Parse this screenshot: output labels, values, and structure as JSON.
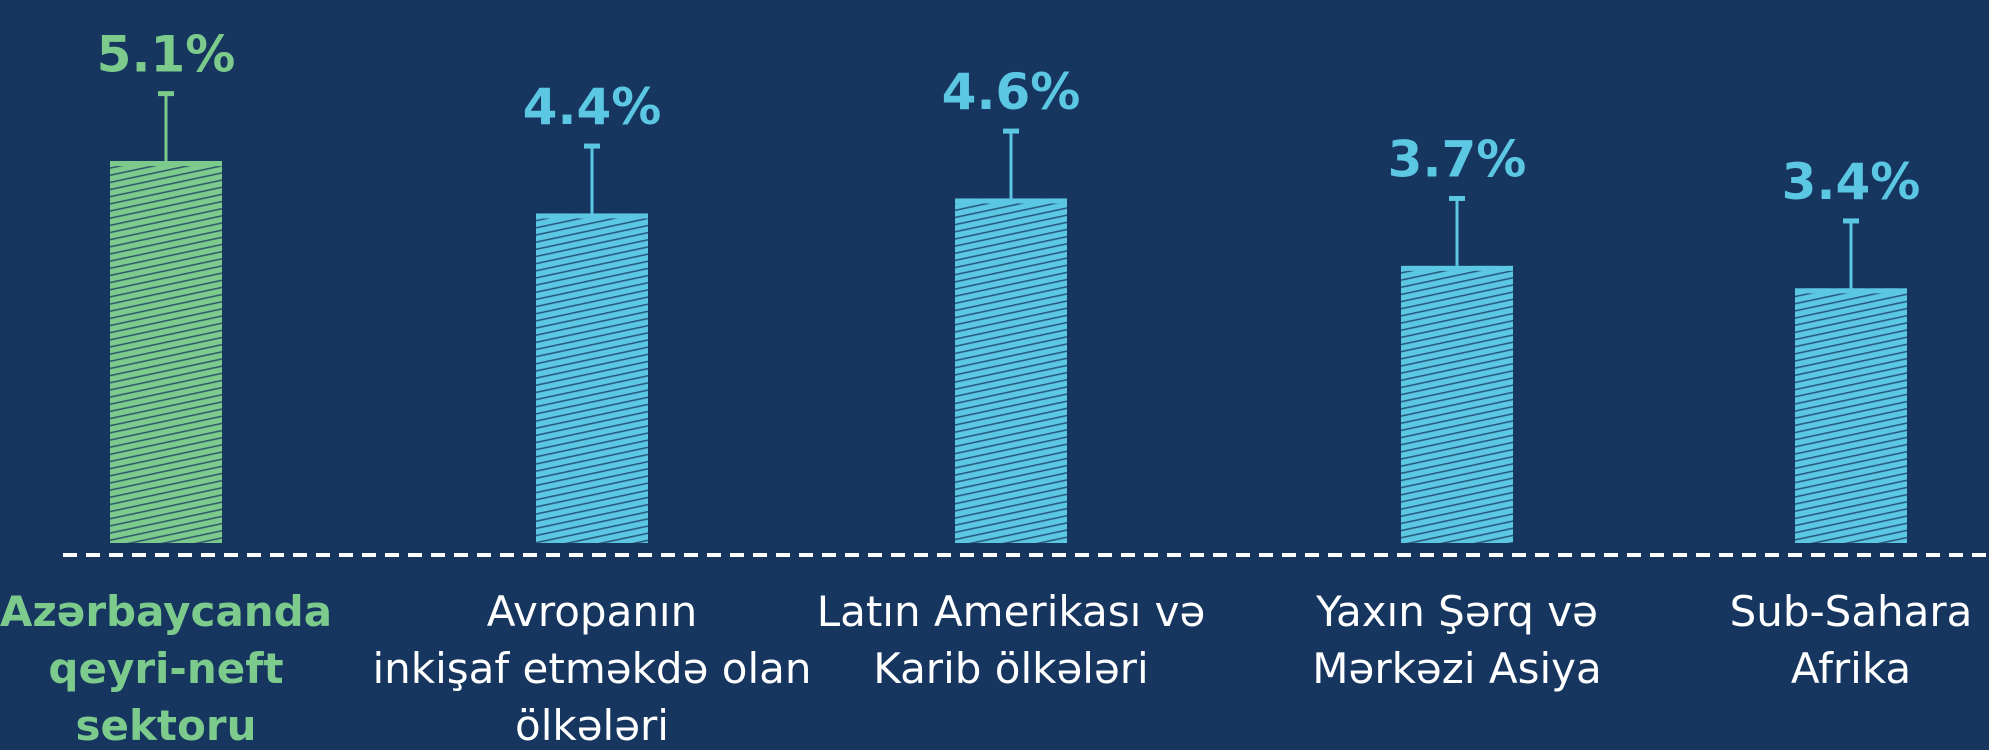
{
  "chart_data": {
    "type": "bar",
    "categories": [
      [
        "Azərbaycanda",
        "qeyri-neft",
        "sektoru"
      ],
      [
        "Avropanın",
        "inkişaf etməkdə olan",
        "ölkələri"
      ],
      [
        "Latın Amerikası və",
        "Karib ölkələri"
      ],
      [
        "Yaxın Şərq və",
        "Mərkəzi Asiya"
      ],
      [
        "Sub-Sahara",
        "Afrika"
      ]
    ],
    "values": [
      5.1,
      4.4,
      4.6,
      3.7,
      3.4
    ],
    "value_labels": [
      "5.1%",
      "4.4%",
      "4.6%",
      "3.7%",
      "3.4%"
    ],
    "errors": [
      0.9,
      0.9,
      0.9,
      0.9,
      0.9
    ],
    "colors": [
      "#7ccb8c",
      "#5cc7e2",
      "#5cc7e2",
      "#5cc7e2",
      "#5cc7e2"
    ],
    "label_colors": [
      "#7ccb8c",
      "#ffffff",
      "#ffffff",
      "#ffffff",
      "#ffffff"
    ],
    "ylim": [
      0,
      7.25
    ]
  }
}
